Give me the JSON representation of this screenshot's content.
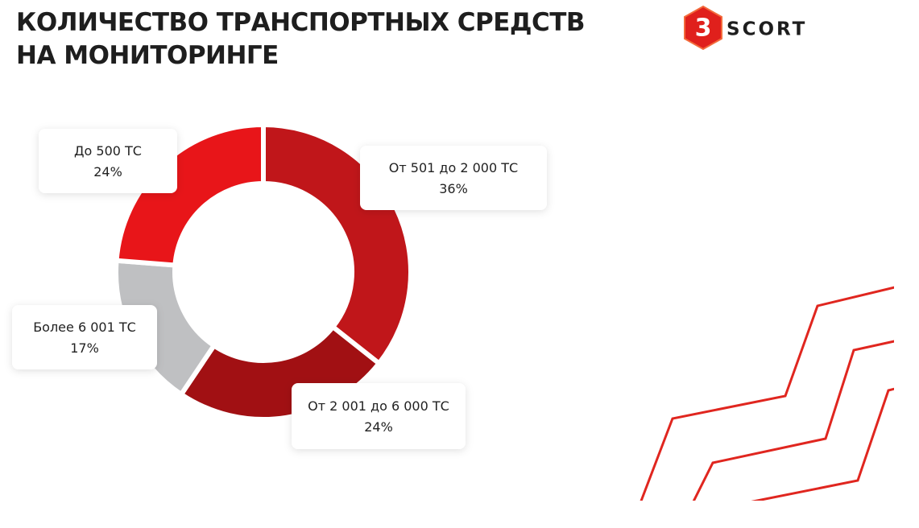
{
  "title": "КОЛИЧЕСТВО ТРАНСПОРТНЫХ СРЕДСТВ НА МОНИТОРИНГЕ",
  "logo": {
    "mark": "3",
    "text": "SCORT"
  },
  "chart_data": {
    "type": "donut",
    "categories": [
      "От 501 до 2 000 ТС",
      "От 2 001 до 6 000 ТС",
      "Более 6 001 ТС",
      "До 500 ТС"
    ],
    "values": [
      36,
      24,
      17,
      24
    ],
    "value_labels": [
      "36%",
      "24%",
      "17%",
      "24%"
    ],
    "colors": [
      "#c0161a",
      "#a11013",
      "#bfc0c2",
      "#e81519"
    ]
  }
}
